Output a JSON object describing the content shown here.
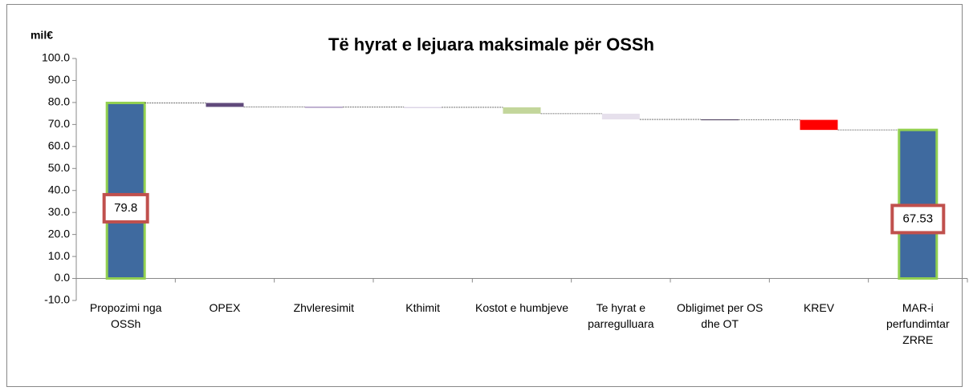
{
  "chart_data": {
    "type": "waterfall",
    "title": "Të hyrat e lejuara maksimale për OSSh",
    "y_axis_label": "mil€",
    "categories": [
      "Propozimi nga OSSh",
      "OPEX",
      "Zhvleresimit",
      "Kthimit",
      "Kostot e humbjeve",
      "Te hyrat e parregulluara",
      "Obligimet per OS dhe OT",
      "KREV",
      "MAR-i perfundimtar ZRRE"
    ],
    "values": [
      79.8,
      -1.8,
      -0.1,
      -0.1,
      -2.9,
      -2.6,
      -0.2,
      -4.57,
      67.53
    ],
    "value_labels": [
      "79.8",
      null,
      null,
      null,
      null,
      null,
      null,
      null,
      "67.53"
    ],
    "colors": [
      "#3f6a9f",
      "#604a7b",
      "#8064a2",
      "#ccc1da",
      "#c3d69b",
      "#e6e0ec",
      "#403152",
      "#ff0000",
      "#3f6a9f"
    ],
    "ylim": [
      -10,
      100
    ],
    "yticks": [
      {
        "value": -10,
        "label": "-10.0"
      },
      {
        "value": 0,
        "label": "0.0"
      },
      {
        "value": 10,
        "label": "10.0"
      },
      {
        "value": 20,
        "label": "20.0"
      },
      {
        "value": 30,
        "label": "30.0"
      },
      {
        "value": 40,
        "label": "40.0"
      },
      {
        "value": 50,
        "label": "50.0"
      },
      {
        "value": 60,
        "label": "60.0"
      },
      {
        "value": 70,
        "label": "70.0"
      },
      {
        "value": 80,
        "label": "80.0"
      },
      {
        "value": 90,
        "label": "90.0"
      },
      {
        "value": 100,
        "label": "100.0"
      }
    ]
  }
}
